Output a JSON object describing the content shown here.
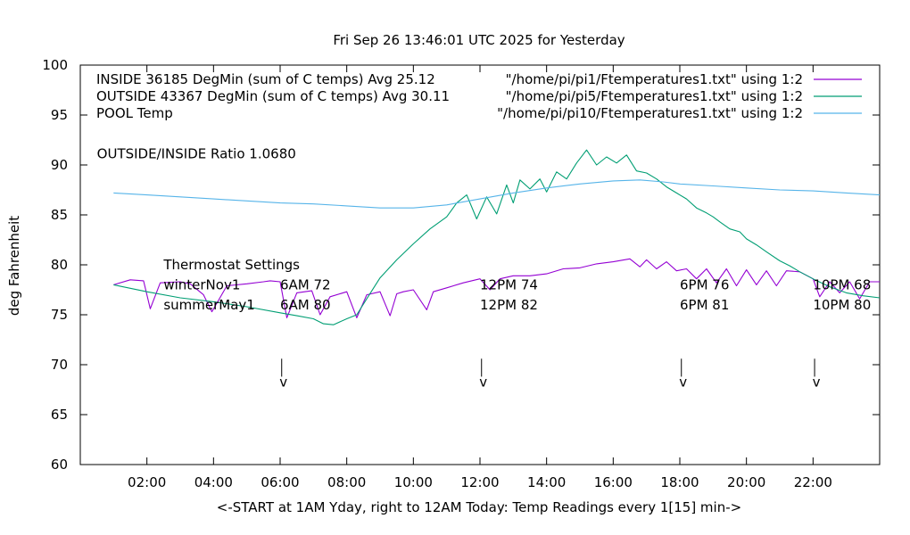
{
  "chart_data": {
    "type": "line",
    "title": "Fri Sep 26 13:46:01 UTC 2025 for Yesterday",
    "xlabel": "<-START at 1AM Yday, right to 12AM Today:  Temp Readings every 1[15] min->",
    "ylabel": "deg Fahrenheit",
    "xlim": [
      0,
      24
    ],
    "ylim": [
      60,
      100
    ],
    "grid": false,
    "legend_position": "top-right",
    "x_ticks": [
      {
        "value": 2,
        "label": "02:00"
      },
      {
        "value": 4,
        "label": "04:00"
      },
      {
        "value": 6,
        "label": "06:00"
      },
      {
        "value": 8,
        "label": "08:00"
      },
      {
        "value": 10,
        "label": "10:00"
      },
      {
        "value": 12,
        "label": "12:00"
      },
      {
        "value": 14,
        "label": "14:00"
      },
      {
        "value": 16,
        "label": "16:00"
      },
      {
        "value": 18,
        "label": "18:00"
      },
      {
        "value": 20,
        "label": "20:00"
      },
      {
        "value": 22,
        "label": "22:00"
      }
    ],
    "y_ticks": [
      60,
      65,
      70,
      75,
      80,
      85,
      90,
      95,
      100
    ],
    "series": [
      {
        "name": "INSIDE 36185 DegMin (sum of C temps) Avg 25.12",
        "legend_source": "\"/home/pi/pi1/Ftemperatures1.txt\" using 1:2",
        "color": "#9400d3",
        "x": [
          1,
          1.5,
          1.9,
          2.1,
          2.4,
          3.0,
          3.3,
          3.7,
          3.95,
          4.4,
          5.0,
          5.5,
          5.7,
          6.0,
          6.2,
          6.5,
          6.95,
          7.2,
          7.5,
          8.0,
          8.3,
          8.6,
          9.0,
          9.3,
          9.5,
          9.7,
          10.0,
          10.4,
          10.6,
          11.0,
          11.5,
          12.0,
          12.3,
          12.6,
          13.0,
          13.5,
          14.0,
          14.5,
          15.0,
          15.5,
          16.0,
          16.5,
          16.8,
          17.0,
          17.3,
          17.6,
          17.9,
          18.2,
          18.5,
          18.8,
          19.1,
          19.4,
          19.7,
          20.0,
          20.3,
          20.6,
          20.9,
          21.2,
          21.6,
          22.0,
          22.2,
          22.5,
          22.8,
          23.1,
          23.4,
          23.7,
          24
        ],
        "y": [
          78.0,
          78.5,
          78.4,
          75.6,
          78.2,
          78.3,
          78.1,
          77.0,
          75.3,
          77.9,
          78.1,
          78.3,
          78.4,
          78.3,
          74.7,
          77.2,
          77.4,
          75.0,
          76.8,
          77.3,
          74.7,
          77.0,
          77.3,
          74.9,
          77.1,
          77.3,
          77.5,
          75.5,
          77.3,
          77.7,
          78.2,
          78.6,
          77.5,
          78.6,
          78.9,
          78.9,
          79.1,
          79.6,
          79.7,
          80.1,
          80.3,
          80.6,
          79.8,
          80.5,
          79.6,
          80.3,
          79.4,
          79.6,
          78.6,
          79.6,
          78.2,
          79.6,
          77.9,
          79.5,
          78.0,
          79.4,
          77.9,
          79.4,
          79.3,
          78.6,
          76.8,
          78.3,
          77.2,
          78.3,
          76.6,
          78.3,
          78.3
        ]
      },
      {
        "name": "OUTSIDE 43367 DegMin (sum of C temps) Avg 30.11",
        "legend_source": "\"/home/pi/pi5/Ftemperatures1.txt\" using 1:2",
        "color": "#009e73",
        "x": [
          1,
          2,
          3,
          4,
          5,
          6,
          6.5,
          7,
          7.3,
          7.6,
          8,
          8.3,
          8.6,
          9,
          9.5,
          10,
          10.5,
          11,
          11.3,
          11.6,
          11.9,
          12.2,
          12.5,
          12.8,
          13.0,
          13.2,
          13.5,
          13.8,
          14.0,
          14.3,
          14.6,
          14.9,
          15.2,
          15.5,
          15.8,
          16.1,
          16.4,
          16.7,
          17.0,
          17.3,
          17.6,
          17.9,
          18.2,
          18.5,
          18.8,
          19.0,
          19.2,
          19.5,
          19.8,
          20.0,
          20.3,
          20.6,
          21.0,
          21.3,
          21.6,
          22.0,
          22.5,
          23.0,
          23.5,
          24
        ],
        "y": [
          78.0,
          77.3,
          76.7,
          76.3,
          75.8,
          75.2,
          74.9,
          74.6,
          74.1,
          74.0,
          74.6,
          75.0,
          76.6,
          78.7,
          80.5,
          82.1,
          83.6,
          84.8,
          86.2,
          87.0,
          84.6,
          86.8,
          85.1,
          88.0,
          86.2,
          88.5,
          87.6,
          88.6,
          87.3,
          89.3,
          88.6,
          90.2,
          91.5,
          90.0,
          90.8,
          90.2,
          91.0,
          89.4,
          89.2,
          88.6,
          87.8,
          87.2,
          86.6,
          85.7,
          85.2,
          84.8,
          84.3,
          83.6,
          83.3,
          82.6,
          82.0,
          81.3,
          80.4,
          79.9,
          79.3,
          78.6,
          77.8,
          77.2,
          76.9,
          76.7
        ]
      },
      {
        "name": "POOL Temp",
        "legend_source": "\"/home/pi/pi10/Ftemperatures1.txt\" using 1:2",
        "color": "#56b4e9",
        "x": [
          1,
          2,
          3,
          4,
          5,
          6,
          7,
          8,
          9,
          10,
          11,
          12,
          13,
          14,
          15,
          16,
          16.8,
          17.5,
          18,
          19,
          20,
          21,
          22,
          23,
          24
        ],
        "y": [
          87.2,
          87.0,
          86.8,
          86.6,
          86.4,
          86.2,
          86.1,
          85.9,
          85.7,
          85.7,
          86.0,
          86.6,
          87.2,
          87.7,
          88.1,
          88.4,
          88.5,
          88.3,
          88.1,
          87.9,
          87.7,
          87.5,
          87.4,
          87.2,
          87.0
        ]
      }
    ],
    "annotations": [
      {
        "text": "OUTSIDE/INSIDE Ratio 1.0680",
        "x": 0.5,
        "y": 91.1
      },
      {
        "text": "Thermostat Settings",
        "x": 2.5,
        "y": 80.0
      },
      {
        "text": "winterNov1",
        "x": 2.5,
        "y": 78.0
      },
      {
        "text": "summerMay1",
        "x": 2.5,
        "y": 76.0
      },
      {
        "text": "6AM 72",
        "x": 6.0,
        "y": 78.0
      },
      {
        "text": "6AM 80",
        "x": 6.0,
        "y": 76.0
      },
      {
        "text": "12PM 74",
        "x": 12.0,
        "y": 78.0
      },
      {
        "text": "12PM 82",
        "x": 12.0,
        "y": 76.0
      },
      {
        "text": "6PM 76",
        "x": 18.0,
        "y": 78.0
      },
      {
        "text": "6PM 81",
        "x": 18.0,
        "y": 76.0
      },
      {
        "text": "10PM 68",
        "x": 22.0,
        "y": 78.0
      },
      {
        "text": "10PM 80",
        "x": 22.0,
        "y": 76.0
      }
    ],
    "markers": [
      {
        "x": 6.1,
        "label": "v"
      },
      {
        "x": 12.1,
        "label": "v"
      },
      {
        "x": 18.1,
        "label": "v"
      },
      {
        "x": 22.1,
        "label": "v"
      }
    ]
  }
}
